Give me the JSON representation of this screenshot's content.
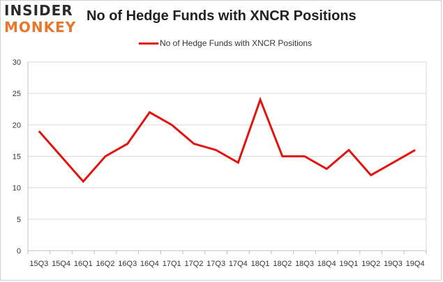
{
  "brand": {
    "line1": "INSIDER",
    "line2": "MONKEY"
  },
  "colors": {
    "series": "#e3140f",
    "logo_accent": "#e8772e",
    "grid": "#d9d9d9"
  },
  "chart_data": {
    "type": "line",
    "title": "No of Hedge Funds with XNCR Positions",
    "xlabel": "",
    "ylabel": "",
    "ylim": [
      0,
      30
    ],
    "yticks": [
      0,
      5,
      10,
      15,
      20,
      25,
      30
    ],
    "grid": true,
    "legend_position": "top-center",
    "categories": [
      "15Q3",
      "15Q4",
      "16Q1",
      "16Q2",
      "16Q3",
      "16Q4",
      "17Q1",
      "17Q2",
      "17Q3",
      "17Q4",
      "18Q1",
      "18Q2",
      "18Q3",
      "18Q4",
      "19Q1",
      "19Q2",
      "19Q3",
      "19Q4"
    ],
    "series": [
      {
        "name": "No of Hedge Funds with XNCR Positions",
        "values": [
          19,
          15,
          11,
          15,
          17,
          22,
          20,
          17,
          16,
          14,
          24,
          15,
          15,
          13,
          16,
          12,
          14,
          16
        ]
      }
    ]
  }
}
